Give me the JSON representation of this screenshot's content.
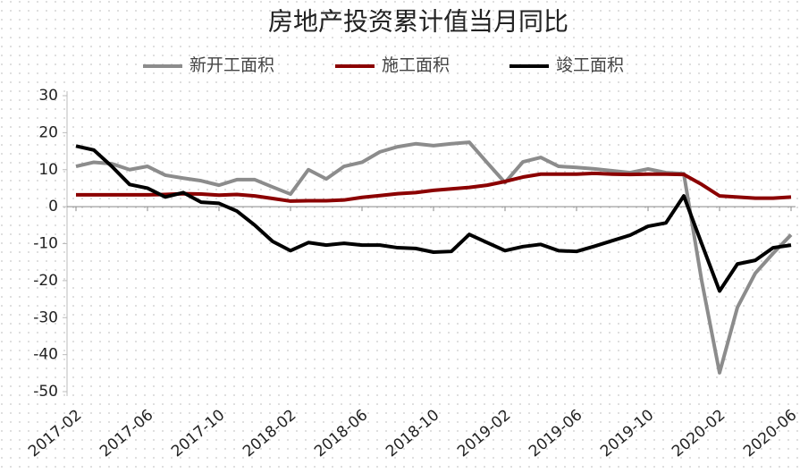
{
  "chart_data": {
    "type": "line",
    "title": "房地产投资累计值当月同比",
    "categories": [
      "2017-02",
      null,
      null,
      null,
      "2017-06",
      null,
      null,
      null,
      "2017-10",
      null,
      null,
      null,
      "2018-02",
      null,
      null,
      null,
      "2018-06",
      null,
      null,
      null,
      "2018-10",
      null,
      null,
      null,
      "2019-02",
      null,
      null,
      null,
      "2019-06",
      null,
      null,
      null,
      "2019-10",
      null,
      null,
      null,
      "2020-02",
      null,
      null,
      null,
      "2020-06"
    ],
    "series": [
      {
        "name": "新开工面积",
        "color": "#8c8c8c",
        "values": [
          10.9,
          12,
          11.6,
          10,
          10.9,
          8.5,
          7.7,
          7,
          5.8,
          7.3,
          7.3,
          5.3,
          3.4,
          10,
          7.5,
          10.9,
          12,
          14.8,
          16.2,
          17,
          16.5,
          17,
          17.4,
          11.9,
          6.5,
          12.1,
          13.3,
          10.9,
          10.6,
          10.2,
          9.7,
          9.2,
          10.2,
          9.2,
          8.9,
          -20,
          -44.9,
          -27.2,
          -18,
          -12.6,
          -7.6
        ]
      },
      {
        "name": "施工面积",
        "color": "#8b0000",
        "values": [
          3.2,
          3.2,
          3.2,
          3.2,
          3.2,
          3.3,
          3.5,
          3.4,
          3.1,
          3.3,
          2.9,
          2.2,
          1.5,
          1.6,
          1.6,
          1.8,
          2.5,
          3,
          3.5,
          3.8,
          4.4,
          4.8,
          5.2,
          5.8,
          6.8,
          8,
          8.8,
          8.8,
          8.8,
          9,
          8.8,
          8.7,
          8.8,
          8.8,
          8.7,
          6,
          2.9,
          2.6,
          2.3,
          2.3,
          2.6
        ]
      },
      {
        "name": "竣工面积",
        "color": "#000000",
        "values": [
          16.4,
          15.3,
          10.9,
          6,
          5,
          2.6,
          3.8,
          1.2,
          0.9,
          -1.2,
          -5,
          -9.4,
          -11.9,
          -9.7,
          -10.4,
          -9.9,
          -10.4,
          -10.4,
          -11.1,
          -11.3,
          -12.3,
          -12.1,
          -7.5,
          -9.7,
          -11.9,
          -10.8,
          -10.2,
          -11.9,
          -12.1,
          -10.7,
          -9.2,
          -7.7,
          -5.3,
          -4.4,
          2.9,
          -10,
          -22.8,
          -15.5,
          -14.5,
          -11.1,
          -10.4
        ]
      }
    ],
    "ylim": [
      -50,
      30
    ],
    "yticks": [
      -50,
      -40,
      -30,
      -20,
      -10,
      0,
      10,
      20,
      30
    ],
    "legend": "top"
  }
}
